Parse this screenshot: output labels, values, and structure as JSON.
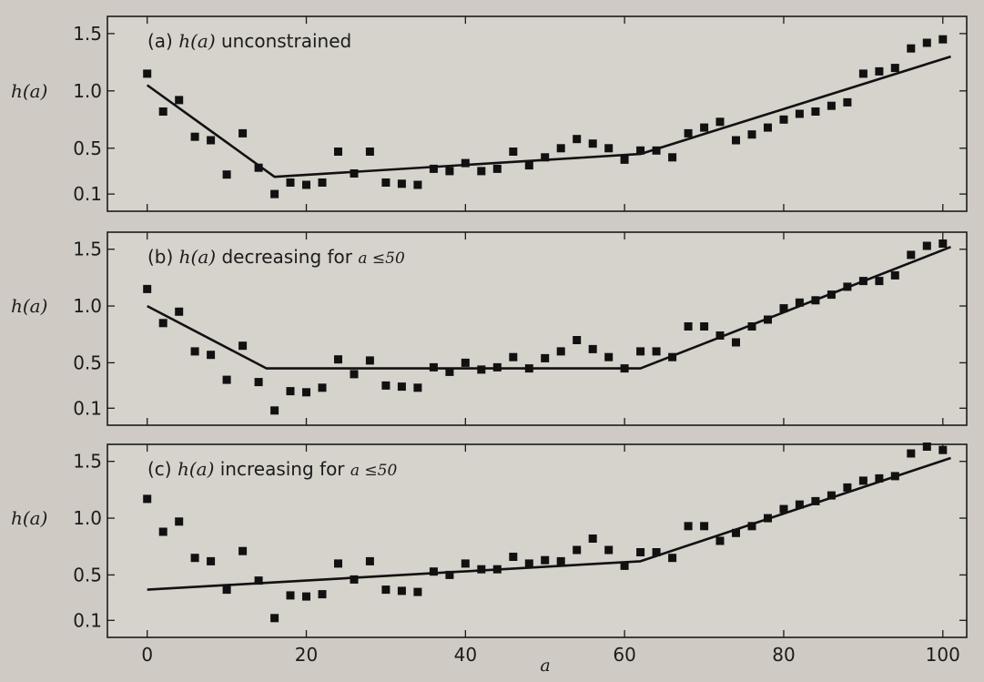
{
  "chart_data": [
    {
      "type": "scatter",
      "title": "(a) h(a) unconstrained",
      "title_prefix": "(a) ",
      "title_math": "h(a)",
      "title_suffix": " unconstrained",
      "ylabel": "h(a)",
      "yticks": [
        "1.5",
        "1.0",
        "0.5",
        "0.1"
      ],
      "ylim": [
        -0.05,
        1.65
      ],
      "xlim": [
        -5,
        103
      ],
      "marker_color": "#111111",
      "points": {
        "x": [
          0,
          2,
          4,
          6,
          8,
          10,
          12,
          14,
          16,
          18,
          20,
          22,
          24,
          26,
          28,
          30,
          32,
          34,
          36,
          38,
          40,
          42,
          44,
          46,
          48,
          50,
          52,
          54,
          56,
          58,
          60,
          62,
          64,
          66,
          68,
          70,
          72,
          74,
          76,
          78,
          80,
          82,
          84,
          86,
          88,
          90,
          92,
          94,
          96,
          98,
          100
        ],
        "y": [
          1.15,
          0.82,
          0.92,
          0.6,
          0.57,
          0.27,
          0.63,
          0.33,
          0.1,
          0.2,
          0.18,
          0.2,
          0.47,
          0.28,
          0.47,
          0.2,
          0.19,
          0.18,
          0.32,
          0.3,
          0.37,
          0.3,
          0.32,
          0.47,
          0.35,
          0.42,
          0.5,
          0.58,
          0.54,
          0.5,
          0.4,
          0.48,
          0.48,
          0.42,
          0.63,
          0.68,
          0.73,
          0.57,
          0.62,
          0.68,
          0.75,
          0.8,
          0.82,
          0.87,
          0.9,
          1.15,
          1.17,
          1.2,
          1.37,
          1.42,
          1.45
        ]
      },
      "line": {
        "x": [
          0,
          16,
          62,
          101
        ],
        "y": [
          1.05,
          0.25,
          0.45,
          1.3
        ]
      }
    },
    {
      "type": "scatter",
      "title": "(b) h(a) decreasing for a ≤50",
      "title_prefix": "(b) ",
      "title_math": "h(a)",
      "title_suffix": " decreasing for ",
      "title_cond": "a ≤50",
      "ylabel": "h(a)",
      "yticks": [
        "1.5",
        "1.0",
        "0.5",
        "0.1"
      ],
      "ylim": [
        -0.05,
        1.65
      ],
      "xlim": [
        -5,
        103
      ],
      "marker_color": "#111111",
      "points": {
        "x": [
          0,
          2,
          4,
          6,
          8,
          10,
          12,
          14,
          16,
          18,
          20,
          22,
          24,
          26,
          28,
          30,
          32,
          34,
          36,
          38,
          40,
          42,
          44,
          46,
          48,
          50,
          52,
          54,
          56,
          58,
          60,
          62,
          64,
          66,
          68,
          70,
          72,
          74,
          76,
          78,
          80,
          82,
          84,
          86,
          88,
          90,
          92,
          94,
          96,
          98,
          100
        ],
        "y": [
          1.15,
          0.85,
          0.95,
          0.6,
          0.57,
          0.35,
          0.65,
          0.33,
          0.08,
          0.25,
          0.24,
          0.28,
          0.53,
          0.4,
          0.52,
          0.3,
          0.29,
          0.28,
          0.46,
          0.42,
          0.5,
          0.44,
          0.46,
          0.55,
          0.45,
          0.54,
          0.6,
          0.7,
          0.62,
          0.55,
          0.45,
          0.6,
          0.6,
          0.55,
          0.82,
          0.82,
          0.74,
          0.68,
          0.82,
          0.88,
          0.98,
          1.03,
          1.05,
          1.1,
          1.17,
          1.22,
          1.22,
          1.27,
          1.45,
          1.53,
          1.55
        ]
      },
      "line": {
        "x": [
          0,
          15,
          62,
          101
        ],
        "y": [
          1.0,
          0.45,
          0.45,
          1.52
        ]
      }
    },
    {
      "type": "scatter",
      "title": "(c) h(a) increasing for a ≤50",
      "title_prefix": "(c) ",
      "title_math": "h(a)",
      "title_suffix": " increasing for ",
      "title_cond": "a ≤50",
      "ylabel": "h(a)",
      "yticks": [
        "1.5",
        "1.0",
        "0.5",
        "0.1"
      ],
      "ylim": [
        -0.05,
        1.65
      ],
      "xlim": [
        -5,
        103
      ],
      "xlabel": "a",
      "xticks": [
        "0",
        "20",
        "40",
        "60",
        "80",
        "100"
      ],
      "xtick_values": [
        0,
        20,
        40,
        60,
        80,
        100
      ],
      "marker_color": "#111111",
      "points": {
        "x": [
          0,
          2,
          4,
          6,
          8,
          10,
          12,
          14,
          16,
          18,
          20,
          22,
          24,
          26,
          28,
          30,
          32,
          34,
          36,
          38,
          40,
          42,
          44,
          46,
          48,
          50,
          52,
          54,
          56,
          58,
          60,
          62,
          64,
          66,
          68,
          70,
          72,
          74,
          76,
          78,
          80,
          82,
          84,
          86,
          88,
          90,
          92,
          94,
          96,
          98,
          100
        ],
        "y": [
          1.17,
          0.88,
          0.97,
          0.65,
          0.62,
          0.37,
          0.71,
          0.45,
          0.12,
          0.32,
          0.31,
          0.33,
          0.6,
          0.46,
          0.62,
          0.37,
          0.36,
          0.35,
          0.53,
          0.5,
          0.6,
          0.55,
          0.55,
          0.66,
          0.6,
          0.63,
          0.62,
          0.72,
          0.82,
          0.72,
          0.58,
          0.7,
          0.7,
          0.65,
          0.93,
          0.93,
          0.8,
          0.87,
          0.93,
          1.0,
          1.08,
          1.12,
          1.15,
          1.2,
          1.27,
          1.33,
          1.35,
          1.37,
          1.57,
          1.63,
          1.6
        ]
      },
      "line": {
        "x": [
          0,
          62,
          101
        ],
        "y": [
          0.37,
          0.62,
          1.53
        ]
      }
    }
  ]
}
